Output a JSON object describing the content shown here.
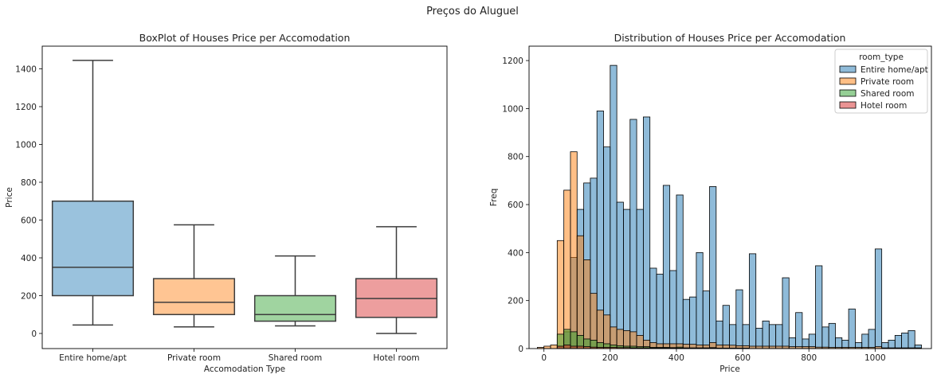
{
  "figure_title": "Preços do Aluguel",
  "chart_data": [
    {
      "type": "box",
      "title": "BoxPlot of Houses Price per Accomodation",
      "xlabel": "Accomodation Type",
      "ylabel": "Price",
      "ylim": [
        -80,
        1520
      ],
      "yticks": [
        0,
        200,
        400,
        600,
        800,
        1000,
        1200,
        1400
      ],
      "grid": false,
      "categories": [
        "Entire home/apt",
        "Private room",
        "Shared room",
        "Hotel room"
      ],
      "boxes": [
        {
          "category": "Entire home/apt",
          "whisker_low": 45,
          "q1": 200,
          "median": 350,
          "q3": 700,
          "whisker_high": 1445,
          "color": "#1f77b4"
        },
        {
          "category": "Private room",
          "whisker_low": 35,
          "q1": 100,
          "median": 165,
          "q3": 290,
          "whisker_high": 575,
          "color": "#ff7f0e"
        },
        {
          "category": "Shared room",
          "whisker_low": 40,
          "q1": 65,
          "median": 100,
          "q3": 200,
          "whisker_high": 410,
          "color": "#2ca02c"
        },
        {
          "category": "Hotel room",
          "whisker_low": 0,
          "q1": 85,
          "median": 185,
          "q3": 290,
          "whisker_high": 565,
          "color": "#d62728"
        }
      ]
    },
    {
      "type": "histogram",
      "title": "Distribution of Houses Price per Accomodation",
      "xlabel": "Price",
      "ylabel": "Freq",
      "xlim": [
        -45,
        1170
      ],
      "ylim": [
        0,
        1260
      ],
      "xticks": [
        0,
        200,
        400,
        600,
        800,
        1000
      ],
      "yticks": [
        0,
        200,
        400,
        600,
        800,
        1000,
        1200
      ],
      "grid": false,
      "bin_width": 20,
      "legend": {
        "title": "room_type",
        "placement": "upper right"
      },
      "series": [
        {
          "name": "Entire home/apt",
          "color": "#1f77b4",
          "bins": [
            [
              40,
              10
            ],
            [
              60,
              70
            ],
            [
              80,
              380
            ],
            [
              100,
              580
            ],
            [
              120,
              690
            ],
            [
              140,
              710
            ],
            [
              160,
              990
            ],
            [
              180,
              840
            ],
            [
              200,
              1180
            ],
            [
              220,
              610
            ],
            [
              240,
              580
            ],
            [
              260,
              955
            ],
            [
              280,
              580
            ],
            [
              300,
              965
            ],
            [
              320,
              335
            ],
            [
              340,
              310
            ],
            [
              360,
              680
            ],
            [
              380,
              325
            ],
            [
              400,
              640
            ],
            [
              420,
              205
            ],
            [
              440,
              215
            ],
            [
              460,
              400
            ],
            [
              480,
              240
            ],
            [
              500,
              675
            ],
            [
              520,
              115
            ],
            [
              540,
              180
            ],
            [
              560,
              100
            ],
            [
              580,
              245
            ],
            [
              600,
              100
            ],
            [
              620,
              395
            ],
            [
              640,
              85
            ],
            [
              660,
              115
            ],
            [
              680,
              100
            ],
            [
              700,
              100
            ],
            [
              720,
              295
            ],
            [
              740,
              45
            ],
            [
              760,
              150
            ],
            [
              780,
              40
            ],
            [
              800,
              60
            ],
            [
              820,
              345
            ],
            [
              840,
              90
            ],
            [
              860,
              105
            ],
            [
              880,
              45
            ],
            [
              900,
              35
            ],
            [
              920,
              165
            ],
            [
              940,
              25
            ],
            [
              960,
              60
            ],
            [
              980,
              80
            ],
            [
              1000,
              415
            ],
            [
              1020,
              25
            ],
            [
              1040,
              35
            ],
            [
              1060,
              55
            ],
            [
              1080,
              65
            ],
            [
              1100,
              75
            ],
            [
              1120,
              15
            ]
          ]
        },
        {
          "name": "Private room",
          "color": "#ff7f0e",
          "bins": [
            [
              -20,
              5
            ],
            [
              0,
              10
            ],
            [
              20,
              15
            ],
            [
              40,
              450
            ],
            [
              60,
              660
            ],
            [
              80,
              820
            ],
            [
              100,
              470
            ],
            [
              120,
              370
            ],
            [
              140,
              230
            ],
            [
              160,
              160
            ],
            [
              180,
              140
            ],
            [
              200,
              90
            ],
            [
              220,
              80
            ],
            [
              240,
              75
            ],
            [
              260,
              70
            ],
            [
              280,
              55
            ],
            [
              300,
              35
            ],
            [
              320,
              25
            ],
            [
              340,
              20
            ],
            [
              360,
              20
            ],
            [
              380,
              20
            ],
            [
              400,
              20
            ],
            [
              420,
              18
            ],
            [
              440,
              18
            ],
            [
              460,
              15
            ],
            [
              480,
              15
            ],
            [
              500,
              25
            ],
            [
              520,
              15
            ],
            [
              540,
              15
            ],
            [
              560,
              14
            ],
            [
              580,
              12
            ],
            [
              600,
              12
            ],
            [
              620,
              10
            ],
            [
              640,
              10
            ],
            [
              660,
              10
            ],
            [
              680,
              10
            ],
            [
              700,
              10
            ],
            [
              720,
              10
            ],
            [
              740,
              8
            ],
            [
              760,
              8
            ],
            [
              780,
              8
            ],
            [
              800,
              8
            ],
            [
              820,
              6
            ],
            [
              840,
              6
            ],
            [
              860,
              5
            ],
            [
              880,
              5
            ],
            [
              900,
              5
            ],
            [
              920,
              5
            ],
            [
              940,
              5
            ],
            [
              960,
              5
            ],
            [
              980,
              5
            ],
            [
              1000,
              8
            ],
            [
              1020,
              3
            ],
            [
              1040,
              3
            ],
            [
              1060,
              3
            ],
            [
              1080,
              3
            ],
            [
              1100,
              3
            ],
            [
              1120,
              3
            ]
          ]
        },
        {
          "name": "Shared room",
          "color": "#2ca02c",
          "bins": [
            [
              40,
              60
            ],
            [
              60,
              80
            ],
            [
              80,
              70
            ],
            [
              100,
              55
            ],
            [
              120,
              40
            ],
            [
              140,
              35
            ],
            [
              160,
              25
            ],
            [
              180,
              20
            ],
            [
              200,
              15
            ],
            [
              220,
              12
            ],
            [
              240,
              10
            ],
            [
              260,
              10
            ],
            [
              280,
              8
            ],
            [
              300,
              8
            ],
            [
              320,
              5
            ],
            [
              340,
              5
            ],
            [
              360,
              5
            ],
            [
              380,
              4
            ],
            [
              400,
              6
            ],
            [
              420,
              3
            ],
            [
              440,
              3
            ],
            [
              460,
              3
            ],
            [
              480,
              3
            ],
            [
              500,
              4
            ],
            [
              520,
              2
            ],
            [
              540,
              2
            ],
            [
              560,
              2
            ],
            [
              580,
              2
            ],
            [
              600,
              2
            ]
          ]
        },
        {
          "name": "Hotel room",
          "color": "#d62728",
          "bins": [
            [
              40,
              10
            ],
            [
              60,
              15
            ],
            [
              80,
              10
            ],
            [
              100,
              10
            ],
            [
              120,
              8
            ],
            [
              140,
              6
            ],
            [
              160,
              5
            ],
            [
              180,
              5
            ],
            [
              200,
              5
            ],
            [
              220,
              4
            ],
            [
              240,
              4
            ],
            [
              260,
              3
            ],
            [
              280,
              3
            ],
            [
              300,
              3
            ],
            [
              320,
              2
            ],
            [
              340,
              2
            ],
            [
              360,
              2
            ],
            [
              380,
              2
            ],
            [
              400,
              2
            ],
            [
              500,
              2
            ]
          ]
        }
      ]
    }
  ]
}
